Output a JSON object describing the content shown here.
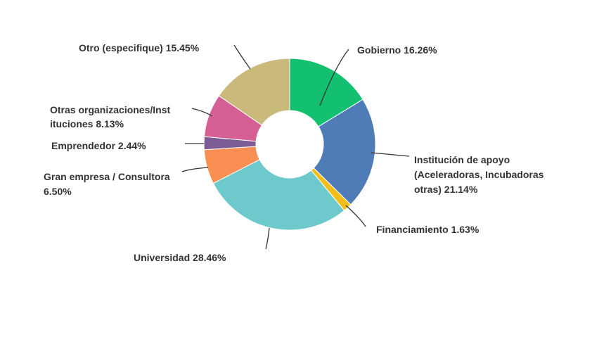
{
  "chart_data": {
    "type": "pie",
    "donut": true,
    "legend": "none",
    "slices": [
      {
        "label": "Gobierno 16.26%",
        "value": 16.26,
        "color": "#12c06f"
      },
      {
        "label": "Institución de apoyo (Aceleradoras, Incubadoras otras) 21.14%",
        "value": 21.14,
        "color": "#4f7bb6"
      },
      {
        "label": "Financiamiento 1.63%",
        "value": 1.63,
        "color": "#f3be1c"
      },
      {
        "label": "Universidad 28.46%",
        "value": 28.46,
        "color": "#6ec9cc"
      },
      {
        "label": "Gran empresa / Consultora 6.50%",
        "value": 6.5,
        "color": "#f98f52"
      },
      {
        "label": "Emprendedor 2.44%",
        "value": 2.44,
        "color": "#7d5b94"
      },
      {
        "label": "Otras organizaciones/Instituciones 8.13%",
        "value": 8.13,
        "color": "#d55f94"
      },
      {
        "label": "Otro (especifique) 15.45%",
        "value": 15.45,
        "color": "#c9b97a"
      }
    ]
  },
  "labels": {
    "gobierno": "Gobierno 16.26%",
    "institucion_l1": "Institución de apoyo",
    "institucion_l2": "(Aceleradoras, Incubadoras",
    "institucion_l3": "otras) 21.14%",
    "financiamiento": "Financiamiento 1.63%",
    "universidad": "Universidad 28.46%",
    "gran_empresa_l1": "Gran empresa / Consultora",
    "gran_empresa_l2": "6.50%",
    "emprendedor": "Emprendedor 2.44%",
    "otras_org_l1": "Otras organizaciones/Inst",
    "otras_org_l2": "ituciones 8.13%",
    "otro": "Otro (especifique) 15.45%"
  }
}
